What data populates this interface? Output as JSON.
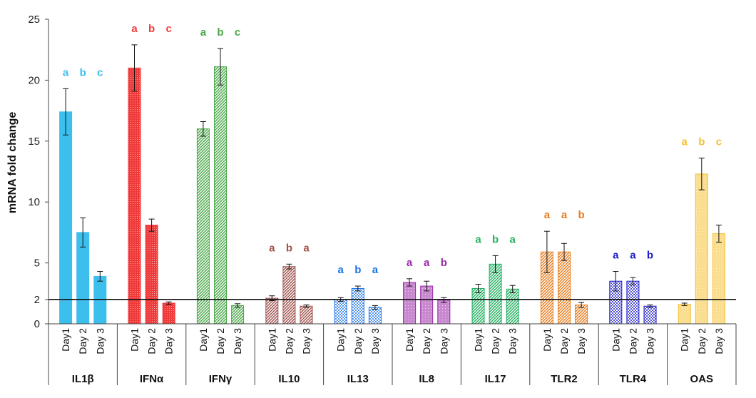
{
  "chart_data": {
    "type": "bar",
    "ylabel": "mRNA fold change",
    "ylim": [
      0,
      25
    ],
    "yticks": [
      0,
      2,
      5,
      10,
      15,
      20,
      25
    ],
    "reference_line": 2,
    "day_labels": [
      "Day1",
      "Day 2",
      "Day 3"
    ],
    "groups": [
      {
        "name": "IL1β",
        "color": "#3dbfee",
        "pattern": "solid",
        "values": [
          17.4,
          7.5,
          3.9
        ],
        "errors": [
          1.9,
          1.2,
          0.4
        ],
        "sig": [
          "a",
          "b",
          "c"
        ]
      },
      {
        "name": "IFNα",
        "color": "#f03a3a",
        "pattern": "dense",
        "values": [
          21.0,
          8.1,
          1.7
        ],
        "errors": [
          1.9,
          0.5,
          0.1
        ],
        "sig": [
          "a",
          "b",
          "c"
        ]
      },
      {
        "name": "IFNγ",
        "color": "#4aa84a",
        "pattern": "hatch",
        "values": [
          16.0,
          21.1,
          1.5
        ],
        "errors": [
          0.6,
          1.5,
          0.15
        ],
        "sig": [
          "a",
          "b",
          "c"
        ]
      },
      {
        "name": "IL10",
        "color": "#a0524d",
        "pattern": "hatch",
        "values": [
          2.1,
          4.7,
          1.45
        ],
        "errors": [
          0.2,
          0.2,
          0.1
        ],
        "sig": [
          "a",
          "b",
          "a"
        ]
      },
      {
        "name": "IL13",
        "color": "#1a73e8",
        "pattern": "check",
        "values": [
          2.0,
          2.9,
          1.35
        ],
        "errors": [
          0.15,
          0.2,
          0.15
        ],
        "sig": [
          "a",
          "b",
          "a"
        ]
      },
      {
        "name": "IL8",
        "color": "#9a28a8",
        "pattern": "light",
        "values": [
          3.4,
          3.1,
          1.95
        ],
        "errors": [
          0.3,
          0.4,
          0.2
        ],
        "sig": [
          "a",
          "a",
          "b"
        ]
      },
      {
        "name": "IL17",
        "color": "#22b060",
        "pattern": "hatch",
        "values": [
          2.9,
          4.9,
          2.85
        ],
        "errors": [
          0.35,
          0.7,
          0.3
        ],
        "sig": [
          "a",
          "b",
          "a"
        ]
      },
      {
        "name": "TLR2",
        "color": "#e87e22",
        "pattern": "hatch",
        "values": [
          5.9,
          5.9,
          1.55
        ],
        "errors": [
          1.7,
          0.7,
          0.2
        ],
        "sig": [
          "a",
          "a",
          "b"
        ]
      },
      {
        "name": "TLR4",
        "color": "#1a1ac8",
        "pattern": "check",
        "values": [
          3.5,
          3.5,
          1.45
        ],
        "errors": [
          0.8,
          0.3,
          0.1
        ],
        "sig": [
          "a",
          "a",
          "b"
        ]
      },
      {
        "name": "OAS",
        "color": "#f5c030",
        "pattern": "light",
        "values": [
          1.6,
          12.3,
          7.4
        ],
        "errors": [
          0.1,
          1.3,
          0.7
        ],
        "sig": [
          "a",
          "b",
          "c"
        ]
      }
    ]
  }
}
